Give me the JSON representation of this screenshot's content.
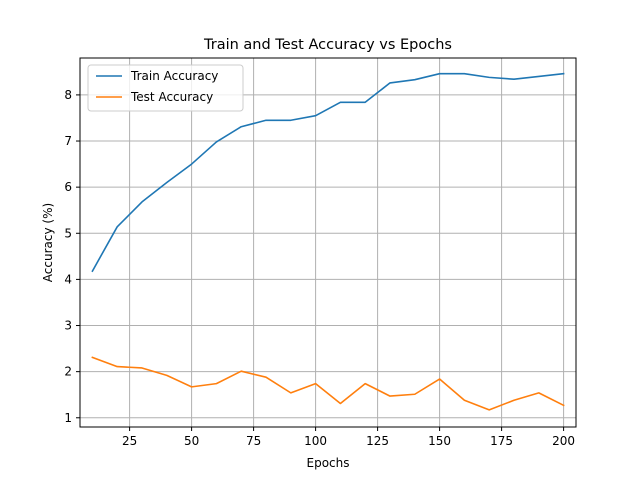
{
  "chart_data": {
    "type": "line",
    "title": "Train and Test Accuracy vs Epochs",
    "xlabel": "Epochs",
    "ylabel": "Accuracy (%)",
    "xlim": [
      5,
      205
    ],
    "ylim": [
      0.8,
      8.8
    ],
    "xticks": [
      25,
      50,
      75,
      100,
      125,
      150,
      175,
      200
    ],
    "yticks": [
      1,
      2,
      3,
      4,
      5,
      6,
      7,
      8
    ],
    "grid": true,
    "legend_position": "top-left",
    "x": [
      10,
      20,
      30,
      40,
      50,
      60,
      70,
      80,
      90,
      100,
      110,
      120,
      130,
      140,
      150,
      160,
      170,
      180,
      190,
      200
    ],
    "series": [
      {
        "name": "Train Accuracy",
        "color": "#1f77b4",
        "values": [
          4.18,
          5.14,
          5.68,
          6.1,
          6.5,
          6.98,
          7.31,
          7.45,
          7.45,
          7.55,
          7.84,
          7.84,
          8.26,
          8.33,
          8.46,
          8.46,
          8.38,
          8.34,
          8.4,
          8.46
        ]
      },
      {
        "name": "Test Accuracy",
        "color": "#ff7f0e",
        "values": [
          2.31,
          2.11,
          2.08,
          1.92,
          1.67,
          1.74,
          2.01,
          1.88,
          1.54,
          1.74,
          1.31,
          1.74,
          1.47,
          1.51,
          1.84,
          1.38,
          1.17,
          1.38,
          1.54,
          1.27
        ]
      }
    ]
  }
}
